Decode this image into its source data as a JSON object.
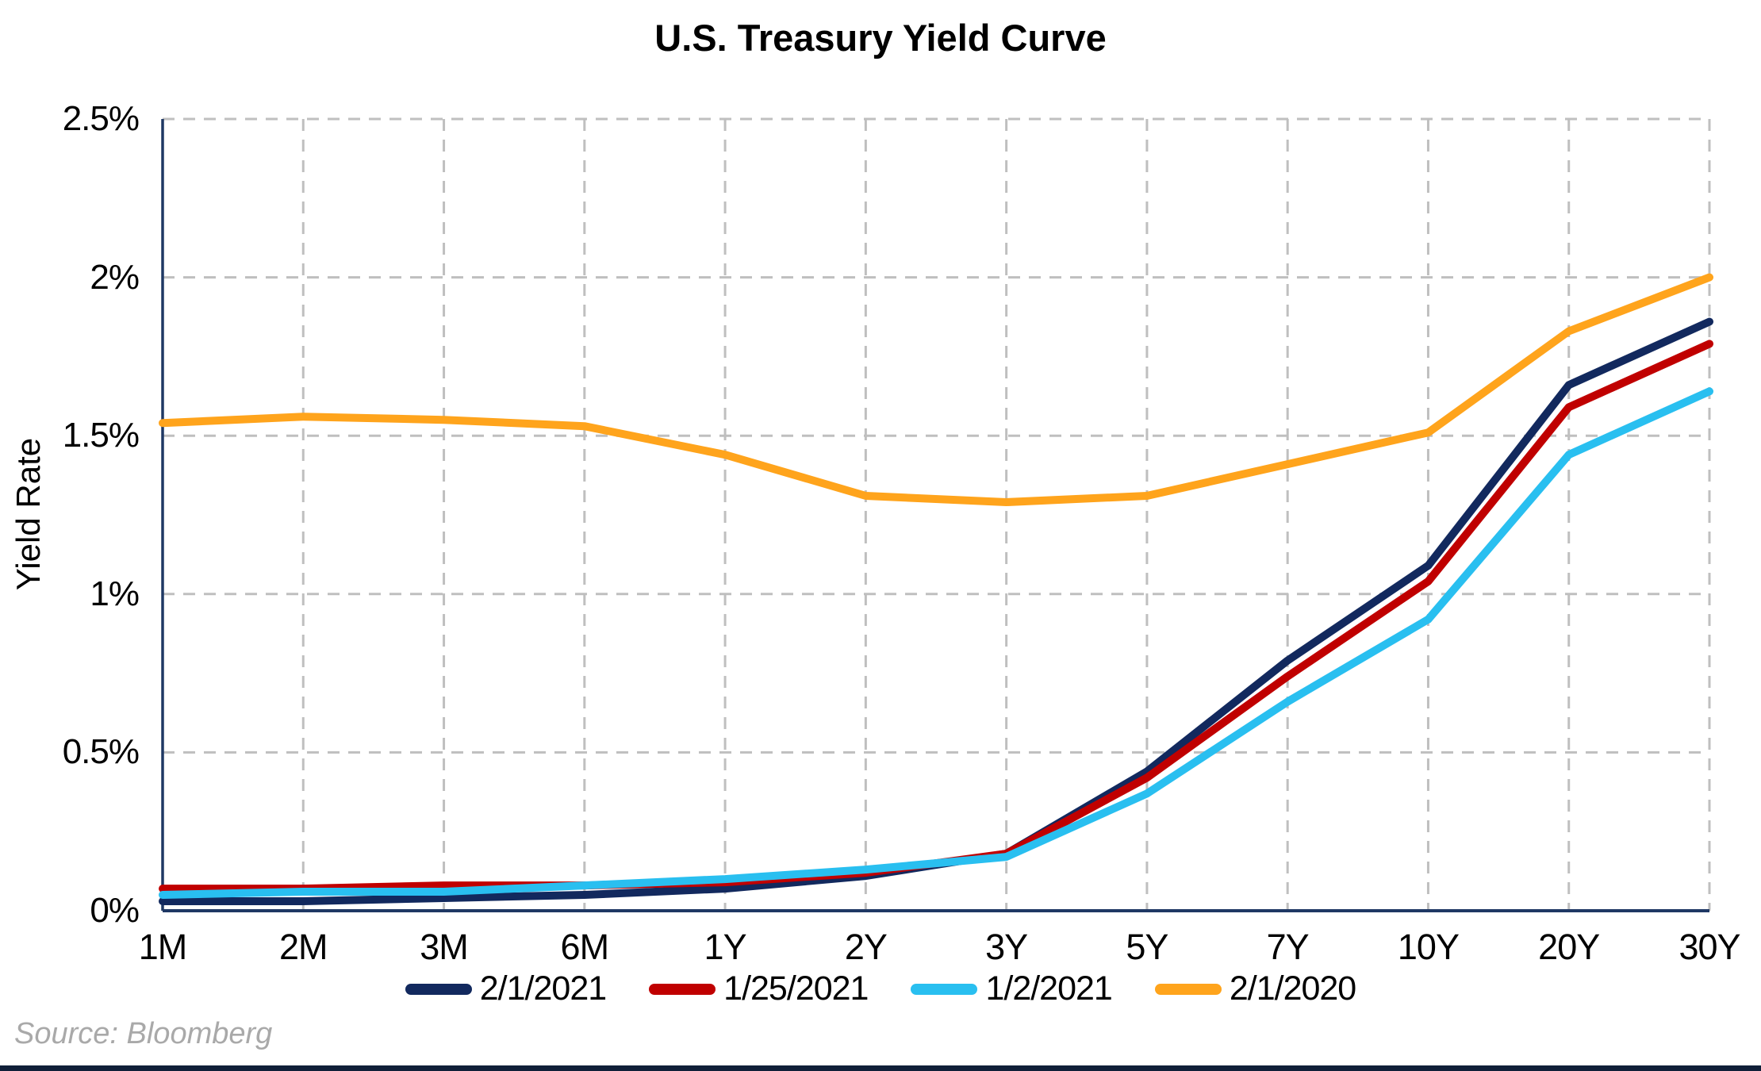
{
  "page": {
    "title": "U.S. Treasury Yield Curve",
    "source": "Source: Bloomberg"
  },
  "chart_data": {
    "type": "line",
    "title": "U.S. Treasury Yield Curve",
    "xlabel": "",
    "ylabel": "Yield Rate",
    "categories": [
      "1M",
      "2M",
      "3M",
      "6M",
      "1Y",
      "2Y",
      "3Y",
      "5Y",
      "7Y",
      "10Y",
      "20Y",
      "30Y"
    ],
    "y_tick_labels": [
      "0%",
      "0.5%",
      "1%",
      "1.5%",
      "2%",
      "2.5%"
    ],
    "y_tick_values": [
      0,
      0.5,
      1.0,
      1.5,
      2.0,
      2.5
    ],
    "ylim": [
      0,
      2.5
    ],
    "grid": "dashed both horizontal and vertical",
    "legend_position": "bottom",
    "series": [
      {
        "name": "2/1/2021",
        "color": "#12295E",
        "values": [
          0.03,
          0.03,
          0.04,
          0.05,
          0.07,
          0.11,
          0.18,
          0.44,
          0.79,
          1.09,
          1.66,
          1.86
        ]
      },
      {
        "name": "1/25/2021",
        "color": "#C00000",
        "values": [
          0.07,
          0.07,
          0.08,
          0.08,
          0.09,
          0.12,
          0.18,
          0.42,
          0.74,
          1.04,
          1.59,
          1.79
        ]
      },
      {
        "name": "1/2/2021",
        "color": "#29BFF0",
        "values": [
          0.05,
          0.06,
          0.06,
          0.08,
          0.1,
          0.13,
          0.17,
          0.37,
          0.66,
          0.92,
          1.44,
          1.64
        ]
      },
      {
        "name": "2/1/2020",
        "color": "#FFA41C",
        "values": [
          1.54,
          1.56,
          1.55,
          1.53,
          1.44,
          1.31,
          1.29,
          1.31,
          1.41,
          1.51,
          1.83,
          2.0
        ]
      }
    ],
    "source": "Source: Bloomberg"
  },
  "theme": {
    "axis_color": "#1F3864",
    "grid_color": "#BFBFBF",
    "page_border_color": "#101F38",
    "source_text_color": "#A9A9A9",
    "background": "#FFFFFF"
  }
}
